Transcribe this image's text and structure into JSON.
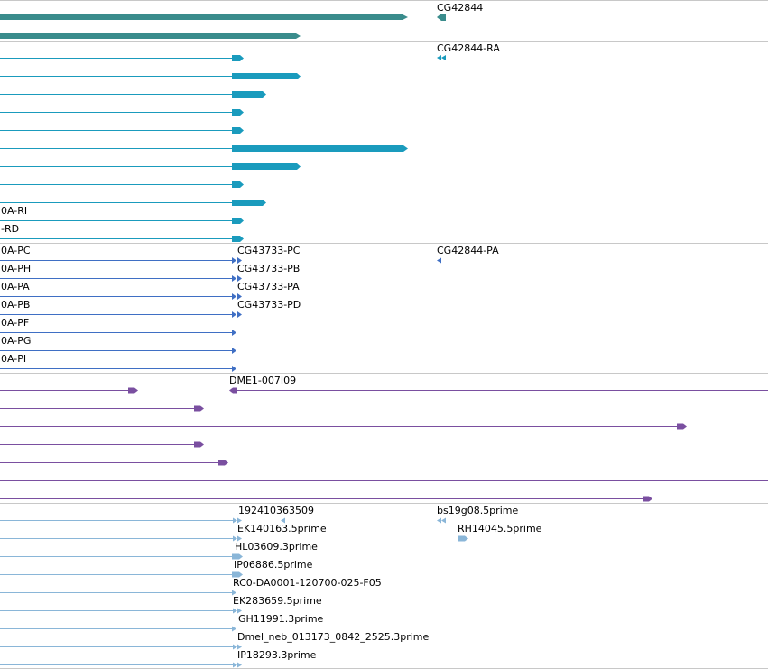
{
  "colors": {
    "gene": "#3a8c8c",
    "transcript": "#1a9bbd",
    "cds": "#3f6fc4",
    "cdna": "#7a4fa0",
    "est": "#8ab6d8",
    "separator": "#c8c8c8"
  },
  "tracks": {
    "gene": {
      "labels": [
        "CG42844"
      ],
      "rows": [
        {
          "label": ""
        },
        {
          "label": ""
        }
      ]
    },
    "transcripts": {
      "labels": [
        "CG42844-RA"
      ],
      "rows": [
        {
          "label": ""
        },
        {
          "label": ""
        },
        {
          "label": ""
        },
        {
          "label": ""
        },
        {
          "label": ""
        },
        {
          "label": ""
        },
        {
          "label": ""
        },
        {
          "label": ""
        },
        {
          "label": "0A-RI"
        },
        {
          "label": "-RD"
        },
        {
          "label": ""
        }
      ]
    },
    "proteins": {
      "labels": [
        "CG42844-PA"
      ],
      "rows": [
        {
          "left": "0A-PC",
          "right": "CG43733-PC"
        },
        {
          "left": "0A-PH",
          "right": "CG43733-PB"
        },
        {
          "left": "0A-PA",
          "right": "CG43733-PA"
        },
        {
          "left": "0A-PB",
          "right": "CG43733-PD"
        },
        {
          "left": "0A-PF",
          "right": ""
        },
        {
          "left": "0A-PG",
          "right": ""
        },
        {
          "left": "0A-PI",
          "right": ""
        }
      ]
    },
    "cdna_clones": {
      "labels": [
        "DME1-007I09"
      ]
    },
    "ests": {
      "labels": [
        "192410363509",
        "EK140163.5prime",
        "HL03609.3prime",
        "IP06886.5prime",
        "RC0-DA0001-120700-025-F05",
        "EK283659.5prime",
        "GH11991.3prime",
        "Dmel_neb_013173_0842_2525.3prime",
        "IP18293.3prime",
        "bs19g08.5prime",
        "RH14045.5prime"
      ]
    }
  }
}
